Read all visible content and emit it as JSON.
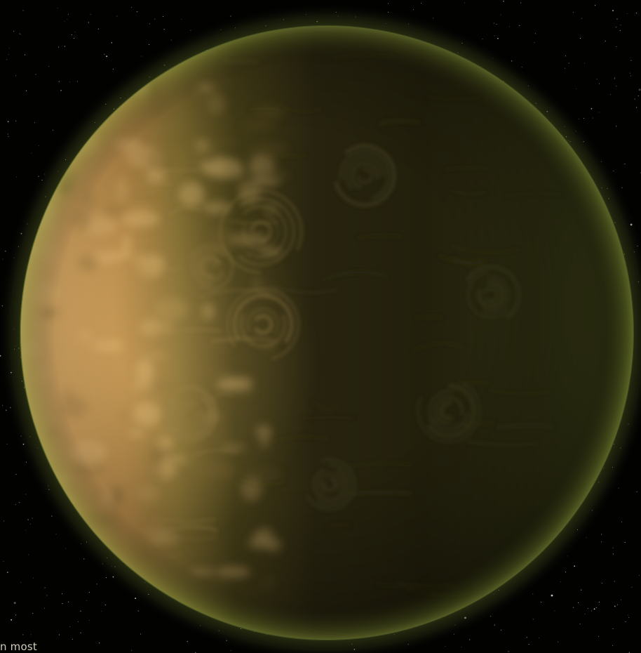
{
  "scene": {
    "subject": "planet-icon",
    "colors": {
      "space": "#020201",
      "lit_surface": "#c99a58",
      "lit_highlight": "#e0b36e",
      "night_side": "#1c1a0d",
      "terminator": "#4a4218",
      "atmosphere_rim": "#6b7a2a"
    }
  },
  "caption": {
    "text": "n most"
  }
}
